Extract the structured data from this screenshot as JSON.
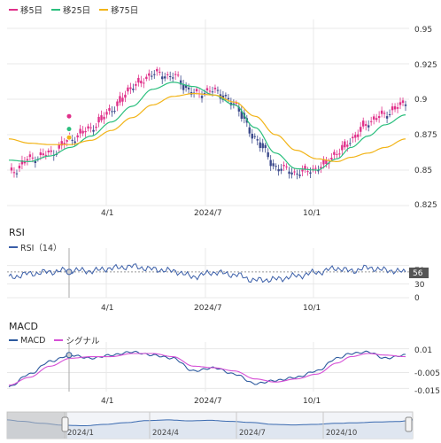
{
  "colors": {
    "up": "#e0308a",
    "down": "#3c4a8c",
    "ma5": "#e0308a",
    "ma25": "#2bbf7e",
    "ma75": "#f2b418",
    "rsi": "#3a5ea8",
    "macd": "#2d5a9e",
    "signal": "#d64fd6",
    "grid": "#e8e8e8",
    "axis": "#333333",
    "current_bg": "#555555",
    "navigator_fill": "#dfe6f0",
    "navigator_line": "#3a6ab0"
  },
  "price": {
    "legend": [
      "移5日",
      "移25日",
      "移75日"
    ],
    "y_ticks": [
      "0.95",
      "0.925",
      "0.9",
      "0.875",
      "0.85",
      "0.825"
    ],
    "x_ticks": [
      "4/1",
      "2024/7",
      "10/1"
    ]
  },
  "rsi": {
    "title": "RSI",
    "legend": "RSI（14）",
    "y_ticks": [
      "70",
      "30",
      "0"
    ],
    "current": "56",
    "x_ticks": [
      "4/1",
      "2024/7",
      "10/1"
    ]
  },
  "macd": {
    "title": "MACD",
    "legend": [
      "MACD",
      "シグナル"
    ],
    "y_ticks": [
      "0.01",
      "-0.005",
      "-0.015"
    ],
    "x_ticks": [
      "4/1",
      "2024/7",
      "10/1"
    ]
  },
  "navigator": {
    "labels": [
      "2024/1",
      "2024/4",
      "2024/7",
      "2024/10"
    ]
  },
  "chart_data": [
    {
      "type": "line",
      "series": [
        {
          "name": "移5日",
          "x": [
            0,
            12,
            24,
            36,
            48,
            60,
            72,
            84,
            96,
            108,
            120,
            132,
            144,
            156,
            168,
            180,
            192,
            200,
            210,
            220,
            232
          ],
          "values": [
            0.848,
            0.858,
            0.862,
            0.872,
            0.88,
            0.893,
            0.909,
            0.918,
            0.916,
            0.904,
            0.906,
            0.896,
            0.872,
            0.852,
            0.848,
            0.851,
            0.862,
            0.872,
            0.884,
            0.89,
            0.898
          ]
        },
        {
          "name": "移25日",
          "x": [
            0,
            12,
            24,
            36,
            48,
            60,
            72,
            84,
            96,
            108,
            120,
            132,
            144,
            156,
            168,
            180,
            192,
            200,
            210,
            220,
            232
          ],
          "values": [
            0.857,
            0.856,
            0.86,
            0.866,
            0.874,
            0.884,
            0.895,
            0.907,
            0.912,
            0.909,
            0.903,
            0.896,
            0.88,
            0.862,
            0.851,
            0.85,
            0.858,
            0.866,
            0.874,
            0.882,
            0.889
          ]
        },
        {
          "name": "移75日",
          "x": [
            0,
            12,
            24,
            36,
            48,
            60,
            72,
            84,
            96,
            108,
            120,
            132,
            144,
            156,
            168,
            180,
            192,
            200,
            210,
            220,
            232
          ],
          "values": [
            0.872,
            0.869,
            0.868,
            0.868,
            0.871,
            0.878,
            0.887,
            0.896,
            0.902,
            0.904,
            0.903,
            0.898,
            0.888,
            0.875,
            0.864,
            0.858,
            0.856,
            0.859,
            0.862,
            0.866,
            0.872
          ]
        }
      ],
      "ylim": [
        0.825,
        0.95
      ],
      "x_tick_labels": [
        "4/1",
        "2024/7",
        "10/1"
      ]
    },
    {
      "type": "line",
      "series": [
        {
          "name": "RSI（14）",
          "x": [
            0,
            12,
            24,
            36,
            48,
            60,
            72,
            84,
            96,
            108,
            120,
            132,
            144,
            156,
            168,
            180,
            192,
            200,
            210,
            220,
            232
          ],
          "values": [
            44,
            52,
            56,
            60,
            58,
            64,
            68,
            62,
            58,
            46,
            55,
            50,
            38,
            40,
            47,
            55,
            64,
            58,
            65,
            60,
            56
          ]
        }
      ],
      "ylim": [
        0,
        100
      ],
      "y_ticks": [
        0,
        30,
        70
      ]
    },
    {
      "type": "line",
      "series": [
        {
          "name": "MACD",
          "x": [
            0,
            12,
            24,
            36,
            48,
            60,
            72,
            84,
            96,
            108,
            120,
            132,
            144,
            156,
            168,
            180,
            192,
            200,
            210,
            220,
            232
          ],
          "values": [
            -0.014,
            -0.006,
            0.002,
            0.006,
            0.004,
            0.006,
            0.008,
            0.006,
            0.004,
            -0.004,
            -0.002,
            -0.006,
            -0.012,
            -0.01,
            -0.008,
            -0.004,
            0.004,
            0.007,
            0.008,
            0.004,
            0.006
          ]
        },
        {
          "name": "シグナル",
          "x": [
            0,
            12,
            24,
            36,
            48,
            60,
            72,
            84,
            96,
            108,
            120,
            132,
            144,
            156,
            168,
            180,
            192,
            200,
            210,
            220,
            232
          ],
          "values": [
            -0.013,
            -0.008,
            -0.001,
            0.004,
            0.005,
            0.005,
            0.007,
            0.007,
            0.005,
            -0.001,
            -0.002,
            -0.004,
            -0.009,
            -0.011,
            -0.009,
            -0.006,
            0.001,
            0.005,
            0.007,
            0.006,
            0.005
          ]
        }
      ],
      "ylim": [
        -0.017,
        0.012
      ],
      "y_ticks": [
        -0.015,
        -0.005,
        0.01
      ]
    }
  ]
}
